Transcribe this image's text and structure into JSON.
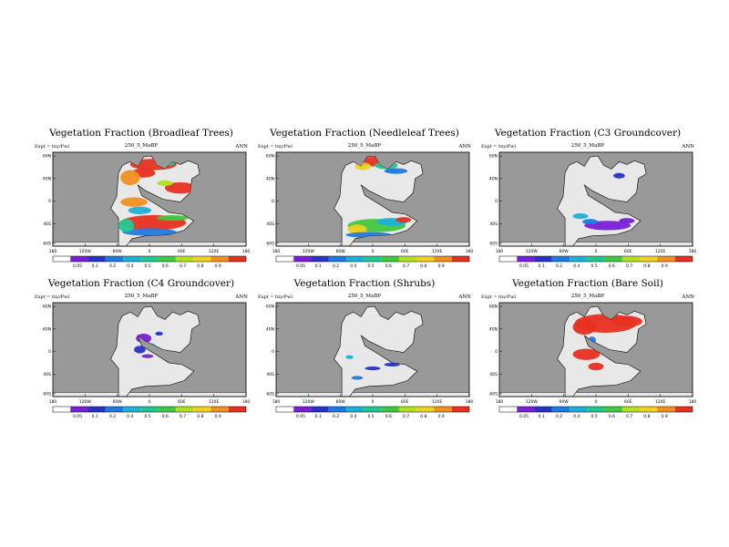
{
  "figure": {
    "experiment_label": "Expt = tny/Pwl",
    "subtitle": "250_5_MaBP",
    "season": "ANN",
    "colors": {
      "land_background": "#e8e8e8",
      "ocean": "#999999",
      "palette": [
        "#7a1fd8",
        "#2633c4",
        "#1f7ae0",
        "#1fb0d8",
        "#20c890",
        "#40c840",
        "#b0e020",
        "#f0d020",
        "#f09020",
        "#e83020"
      ]
    },
    "lon_ticks": [
      "180",
      "120W",
      "60W",
      "0",
      "60E",
      "120E",
      "180"
    ],
    "lat_ticks": [
      "60N",
      "40N",
      "0",
      "40S",
      "60S"
    ],
    "lat_ticks_alt": [
      "60N",
      "40N",
      "0",
      "40S",
      "60S"
    ]
  },
  "colorbar": {
    "labels": [
      "0.05",
      "0.1",
      "0.2",
      "0.4",
      "0.5",
      "0.6",
      "0.7",
      "0.8",
      "0.9"
    ],
    "labels_alt": [
      "0.05",
      "0.1",
      "0.2",
      "0.4",
      "0.5",
      "0.6",
      "0.7",
      "0.8",
      "0.9"
    ]
  },
  "chart_data": [
    {
      "type": "heatmap",
      "title": "Vegetation Fraction (Broadleaf Trees)",
      "variable": "broadleaf"
    },
    {
      "type": "heatmap",
      "title": "Vegetation Fraction (Needleleaf Trees)",
      "variable": "needleleaf"
    },
    {
      "type": "heatmap",
      "title": "Vegetation Fraction (C3 Groundcover)",
      "variable": "c3"
    },
    {
      "type": "heatmap",
      "title": "Vegetation Fraction (C4 Groundcover)",
      "variable": "c4"
    },
    {
      "type": "heatmap",
      "title": "Vegetation Fraction (Shrubs)",
      "variable": "shrubs"
    },
    {
      "type": "heatmap",
      "title": "Vegetation Fraction (Bare Soil)",
      "variable": "bare"
    }
  ]
}
